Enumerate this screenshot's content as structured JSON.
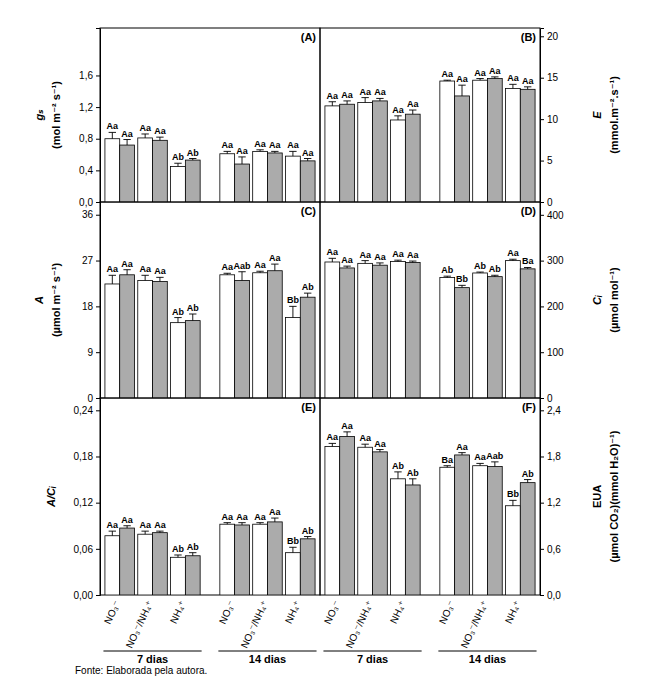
{
  "chart_data": [
    {
      "type": "bar",
      "title": "(A)",
      "y_label": [
        "gₛ",
        "(mol m⁻² s⁻¹)"
      ],
      "categories": [
        null,
        null,
        null,
        null,
        null,
        null
      ],
      "tick_labels": "y",
      "grid": false,
      "ylim": [
        0,
        2.2
      ],
      "yticks": [
        {
          "value": 0,
          "label": "0,0"
        },
        {
          "value": 0.4,
          "label": "0,4"
        },
        {
          "value": 0.8,
          "label": "0,8"
        },
        {
          "value": 1.2,
          "label": "1,2"
        },
        {
          "value": 1.6,
          "label": "1,6"
        }
      ],
      "series": [
        {
          "color": "#ffffff",
          "values": [
            0.8,
            0.81,
            0.45,
            0.61,
            0.64,
            0.58
          ],
          "errors": [
            0.08,
            0.05,
            0.04,
            0.03,
            0.02,
            0.06
          ],
          "labels": [
            "Aa",
            "Aa",
            "Ab",
            "Aa",
            "Aa",
            "Aa"
          ]
        },
        {
          "color": "#ababab",
          "values": [
            0.72,
            0.78,
            0.53,
            0.48,
            0.62,
            0.52
          ],
          "errors": [
            0.07,
            0.04,
            0.02,
            0.09,
            0.02,
            0.03
          ],
          "labels": [
            "Aa",
            "Aa",
            "Ab",
            "Aa",
            "Aa",
            "Aa"
          ]
        }
      ]
    },
    {
      "type": "bar",
      "title": "(B)",
      "y_label": [
        "E",
        "(mmol.m⁻².s⁻¹)"
      ],
      "categories": [
        null,
        null,
        null,
        null,
        null,
        null
      ],
      "tick_labels": "y",
      "grid": false,
      "ylim": [
        0,
        21
      ],
      "yticks": [
        0,
        5,
        10,
        15,
        20
      ],
      "series": [
        {
          "color": "#ffffff",
          "values": [
            11.6,
            12.0,
            9.9,
            14.6,
            14.7,
            13.7
          ],
          "errors": [
            0.5,
            0.6,
            0.5,
            0.1,
            0.2,
            0.5
          ],
          "labels": [
            "Aa",
            "Aa",
            "Aa",
            "Aa",
            "Aa",
            "Aa"
          ]
        },
        {
          "color": "#ababab",
          "values": [
            11.8,
            12.2,
            10.6,
            12.8,
            14.9,
            13.6
          ],
          "errors": [
            0.4,
            0.3,
            0.5,
            1.3,
            0.2,
            0.3
          ],
          "labels": [
            "Aa",
            "Aa",
            "Aa",
            "Aa",
            "Aa",
            "Aa"
          ]
        }
      ]
    },
    {
      "type": "bar",
      "title": "(C)",
      "y_label": [
        "A",
        "(µmol m⁻² s⁻¹)"
      ],
      "categories": [
        null,
        null,
        null,
        null,
        null,
        null
      ],
      "tick_labels": "y",
      "grid": false,
      "ylim": [
        0,
        38.5
      ],
      "yticks": [
        0,
        9,
        18,
        27,
        36
      ],
      "series": [
        {
          "color": "#ffffff",
          "values": [
            22.4,
            23.1,
            14.8,
            24.2,
            24.6,
            15.8
          ],
          "errors": [
            1.7,
            1.0,
            1.0,
            0.3,
            0.3,
            2.2
          ],
          "labels": [
            "Aa",
            "Aa",
            "Ab",
            "Aa",
            "Aa",
            "Bb"
          ]
        },
        {
          "color": "#ababab",
          "values": [
            24.2,
            22.9,
            15.2,
            23.1,
            25.0,
            19.8
          ],
          "errors": [
            1.0,
            0.8,
            1.3,
            1.7,
            1.3,
            0.8
          ],
          "labels": [
            "Aa",
            "Aa",
            "Ab",
            "Aab",
            "Aa",
            "Ab"
          ]
        }
      ]
    },
    {
      "type": "bar",
      "title": "(D)",
      "y_label": [
        "Cᵢ",
        "(µmol mol⁻¹)"
      ],
      "categories": [
        null,
        null,
        null,
        null,
        null,
        null
      ],
      "tick_labels": "y",
      "grid": false,
      "ylim": [
        0,
        428
      ],
      "yticks": [
        0,
        100,
        200,
        300,
        400
      ],
      "series": [
        {
          "color": "#ffffff",
          "values": [
            297,
            294,
            298,
            263,
            273,
            300
          ],
          "errors": [
            8,
            6,
            3,
            3,
            2,
            3
          ],
          "labels": [
            "Aa",
            "Aa",
            "Aa",
            "Ab",
            "Ab",
            "Aa"
          ]
        },
        {
          "color": "#ababab",
          "values": [
            284,
            290,
            296,
            241,
            265,
            282
          ],
          "errors": [
            4,
            5,
            3,
            5,
            3,
            3
          ],
          "labels": [
            "Aa",
            "Aa",
            "Aa",
            "Bb",
            "Ab",
            "Ba"
          ]
        }
      ]
    },
    {
      "type": "bar",
      "title": "(E)",
      "y_label": [
        "A/Cᵢ"
      ],
      "categories": [
        "NO₃⁻",
        "NO₃⁻/NH₄⁺",
        "NH₄⁺",
        "NO₃⁻",
        "NO₃⁻/NH₄⁺",
        "NH₄⁺"
      ],
      "groups": [
        "7 dias",
        "14 dias"
      ],
      "grid": false,
      "ylim": [
        0,
        0.256
      ],
      "yticks": [
        {
          "value": 0,
          "label": "0,00"
        },
        {
          "value": 0.06,
          "label": "0,06"
        },
        {
          "value": 0.12,
          "label": "0,12"
        },
        {
          "value": 0.18,
          "label": "0,18"
        },
        {
          "value": 0.24,
          "label": "0,24"
        }
      ],
      "series": [
        {
          "color": "#ffffff",
          "values": [
            0.077,
            0.079,
            0.049,
            0.092,
            0.092,
            0.055
          ],
          "errors": [
            0.006,
            0.004,
            0.003,
            0.002,
            0.002,
            0.007
          ],
          "labels": [
            "Aa",
            "Aa",
            "Ab",
            "Aa",
            "Aa",
            "Bb"
          ]
        },
        {
          "color": "#ababab",
          "values": [
            0.087,
            0.081,
            0.051,
            0.091,
            0.095,
            0.073
          ],
          "errors": [
            0.003,
            0.002,
            0.004,
            0.003,
            0.005,
            0.003
          ],
          "labels": [
            "Aa",
            "Aa",
            "Ab",
            "Aa",
            "Aa",
            "Ab"
          ]
        }
      ]
    },
    {
      "type": "bar",
      "title": "(F)",
      "y_label": [
        "EUA",
        "(µmol CO₂)(mmol H₂O)⁻¹)"
      ],
      "categories": [
        "NO₃⁻",
        "NO₃⁻/NH₄⁺",
        "NH₄⁺",
        "NO₃⁻",
        "NO₃⁻/NH₄⁺",
        "NH₄⁺"
      ],
      "groups": [
        "7 dias",
        "14 dias"
      ],
      "grid": false,
      "ylim": [
        0,
        2.56
      ],
      "yticks": [
        {
          "value": 0,
          "label": "0,0"
        },
        {
          "value": 0.6,
          "label": "0,6"
        },
        {
          "value": 1.2,
          "label": "1,2"
        },
        {
          "value": 1.8,
          "label": "1,8"
        },
        {
          "value": 2.4,
          "label": "2,4"
        }
      ],
      "series": [
        {
          "color": "#ffffff",
          "values": [
            1.93,
            1.92,
            1.51,
            1.66,
            1.68,
            1.16
          ],
          "errors": [
            0.04,
            0.04,
            0.09,
            0.02,
            0.03,
            0.07
          ],
          "labels": [
            "Aa",
            "Aa",
            "Ab",
            "Ba",
            "Aa",
            "Bb"
          ]
        },
        {
          "color": "#ababab",
          "values": [
            2.06,
            1.86,
            1.43,
            1.82,
            1.67,
            1.46
          ],
          "errors": [
            0.06,
            0.03,
            0.08,
            0.03,
            0.06,
            0.04
          ],
          "labels": [
            "Aa",
            "Aa",
            "Ab",
            "Aa",
            "Aab",
            "Ab"
          ]
        }
      ]
    }
  ],
  "source": "Fonte: Elaborada pela autora."
}
